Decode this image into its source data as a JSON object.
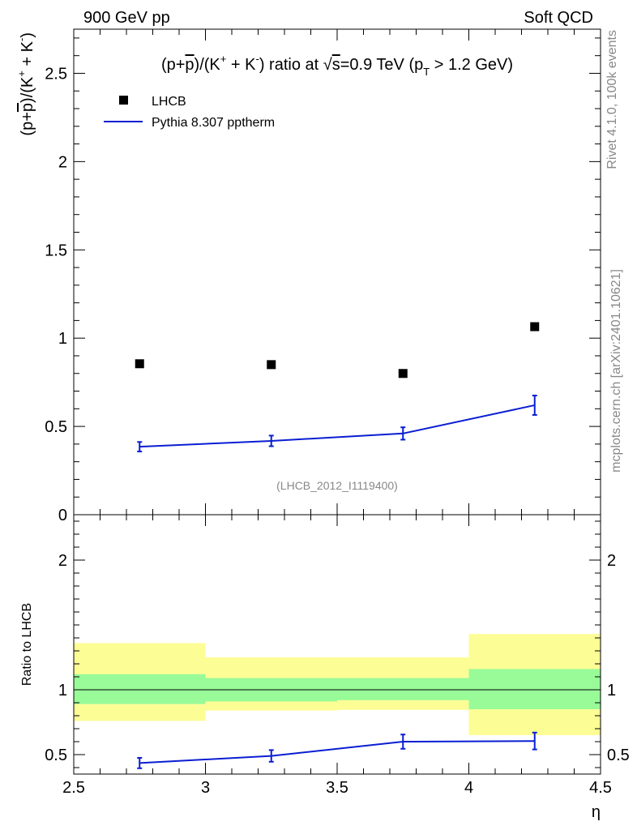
{
  "header": {
    "left": "900 GeV pp",
    "right": "Soft QCD"
  },
  "side_text": {
    "rivet": "Rivet 4.1.0,  100k events",
    "mcplots": "mcplots.cern.ch [arXiv:2401.10621]"
  },
  "chart_data": [
    {
      "type": "scatter",
      "title": "(p+p̄)/(K⁺ + K⁻) ratio at √s=0.9 TeV (pT > 1.2 GeV)",
      "title_parts": {
        "pre": "(p+",
        "pbar": "p",
        "mid1": ")/(K",
        "kplus": "+",
        "mid2": " + K",
        "kminus": "-",
        "mid3": ") ratio at ",
        "sqrt": "√",
        "s": "s",
        "post1": "=0.9 TeV (p",
        "sub": "T",
        "post2": " > 1.2 GeV)"
      },
      "ylabel": "(p+p̄)/(K⁺ + K⁻)",
      "ylabel_parts": {
        "pre": "(p+",
        "pbar": "p",
        "mid1": ")/(K",
        "kplus": "+",
        "mid2": " + K",
        "kminus": "-",
        "post": ")"
      },
      "xlim": [
        2.5,
        4.5
      ],
      "ylim": [
        0,
        2.75
      ],
      "yticks": [
        0,
        0.5,
        1,
        1.5,
        2,
        2.5
      ],
      "ytick_labels": [
        "0",
        "0.5",
        "1",
        "1.5",
        "2",
        "2.5"
      ],
      "watermark": "(LHCB_2012_I1119400)",
      "legend": [
        {
          "label": "LHCB",
          "marker": "square"
        },
        {
          "label": "Pythia 8.307 pptherm",
          "marker": "line"
        }
      ],
      "series": [
        {
          "name": "LHCB",
          "x": [
            2.75,
            3.25,
            3.75,
            4.25
          ],
          "y": [
            0.855,
            0.85,
            0.8,
            1.065
          ]
        },
        {
          "name": "Pythia 8.307 pptherm",
          "x": [
            2.75,
            3.25,
            3.75,
            4.25
          ],
          "y": [
            0.385,
            0.418,
            0.46,
            0.62
          ],
          "yerr": [
            0.027,
            0.03,
            0.035,
            0.055
          ]
        }
      ]
    },
    {
      "type": "line",
      "ylabel": "Ratio to LHCB",
      "xlabel": "η",
      "xlim": [
        2.5,
        4.5
      ],
      "ylim": [
        0.35,
        2.35
      ],
      "xticks": [
        2.5,
        3,
        3.5,
        4,
        4.5
      ],
      "xtick_labels": [
        "2.5",
        "3",
        "3.5",
        "4",
        "4.5"
      ],
      "yticks": [
        0.5,
        1,
        2
      ],
      "ytick_labels": [
        "0.5",
        "1",
        "2"
      ],
      "bands": [
        {
          "xlo": 2.5,
          "xhi": 3.0,
          "yellow": [
            0.76,
            1.36
          ],
          "green": [
            0.89,
            1.12
          ]
        },
        {
          "xlo": 3.0,
          "xhi": 3.5,
          "yellow": [
            0.84,
            1.25
          ],
          "green": [
            0.91,
            1.09
          ]
        },
        {
          "xlo": 3.5,
          "xhi": 4.0,
          "yellow": [
            0.845,
            1.25
          ],
          "green": [
            0.92,
            1.09
          ]
        },
        {
          "xlo": 4.0,
          "xhi": 4.5,
          "yellow": [
            0.65,
            1.43
          ],
          "green": [
            0.85,
            1.16
          ]
        }
      ],
      "series": [
        {
          "name": "Pythia 8.307 pptherm / LHCB",
          "x": [
            2.75,
            3.25,
            3.75,
            4.25
          ],
          "y": [
            0.435,
            0.49,
            0.6,
            0.605
          ],
          "yerr": [
            0.04,
            0.045,
            0.055,
            0.065
          ]
        }
      ]
    }
  ],
  "colors": {
    "mc": "#0a1ed2",
    "data": "#000000",
    "yellow": "#fdfd96",
    "green": "#98fb98",
    "grey_text": "#888888"
  }
}
